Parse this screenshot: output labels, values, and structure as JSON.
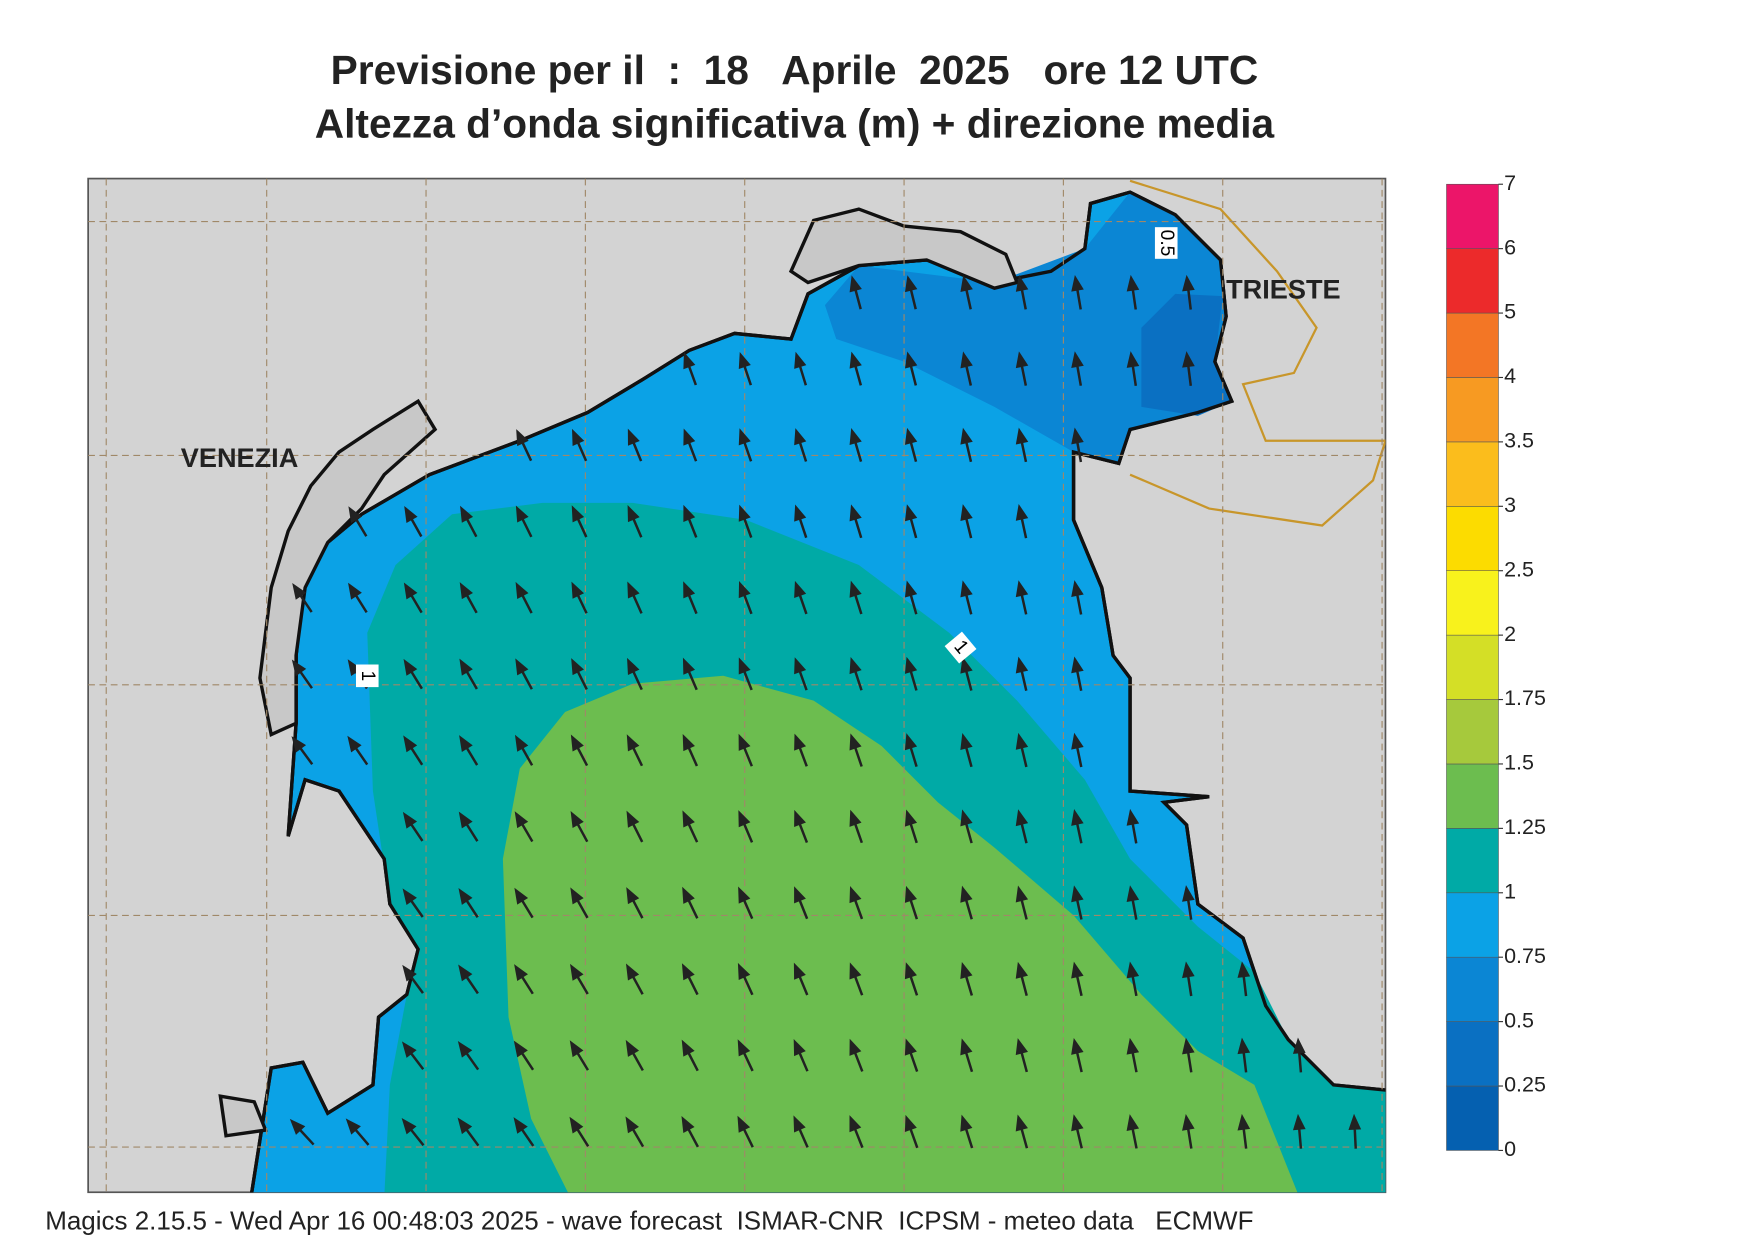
{
  "header": {
    "title": [
      "Previsione per il  :  18   Aprile  2025   ore 12 UTC",
      "Altezza d’onda significativa (m) + direzione media"
    ]
  },
  "map": {
    "places": [
      "VENEZIA",
      "TRIESTE"
    ],
    "contour_labels": [
      1,
      1,
      0.5
    ]
  },
  "colorbar": {
    "levels": [
      0,
      0.25,
      0.5,
      0.75,
      1,
      1.25,
      1.5,
      1.75,
      2,
      2.5,
      3,
      3.5,
      4,
      5,
      6,
      7
    ],
    "colors": [
      "#0560b0",
      "#0a70c2",
      "#0b86d4",
      "#0ba2e6",
      "#00aaa6",
      "#6cbd4f",
      "#a6c93c",
      "#d4df26",
      "#f8f21c",
      "#fcdc00",
      "#fbbd1c",
      "#f79a22",
      "#f37625",
      "#ec2a2b",
      "#ec1569"
    ]
  },
  "footer": "Magics 2.15.5 - Wed Apr 16 00:48:03 2025 - wave forecast  ISMAR-CNR  ICPSM - meteo data   ECMWF"
}
